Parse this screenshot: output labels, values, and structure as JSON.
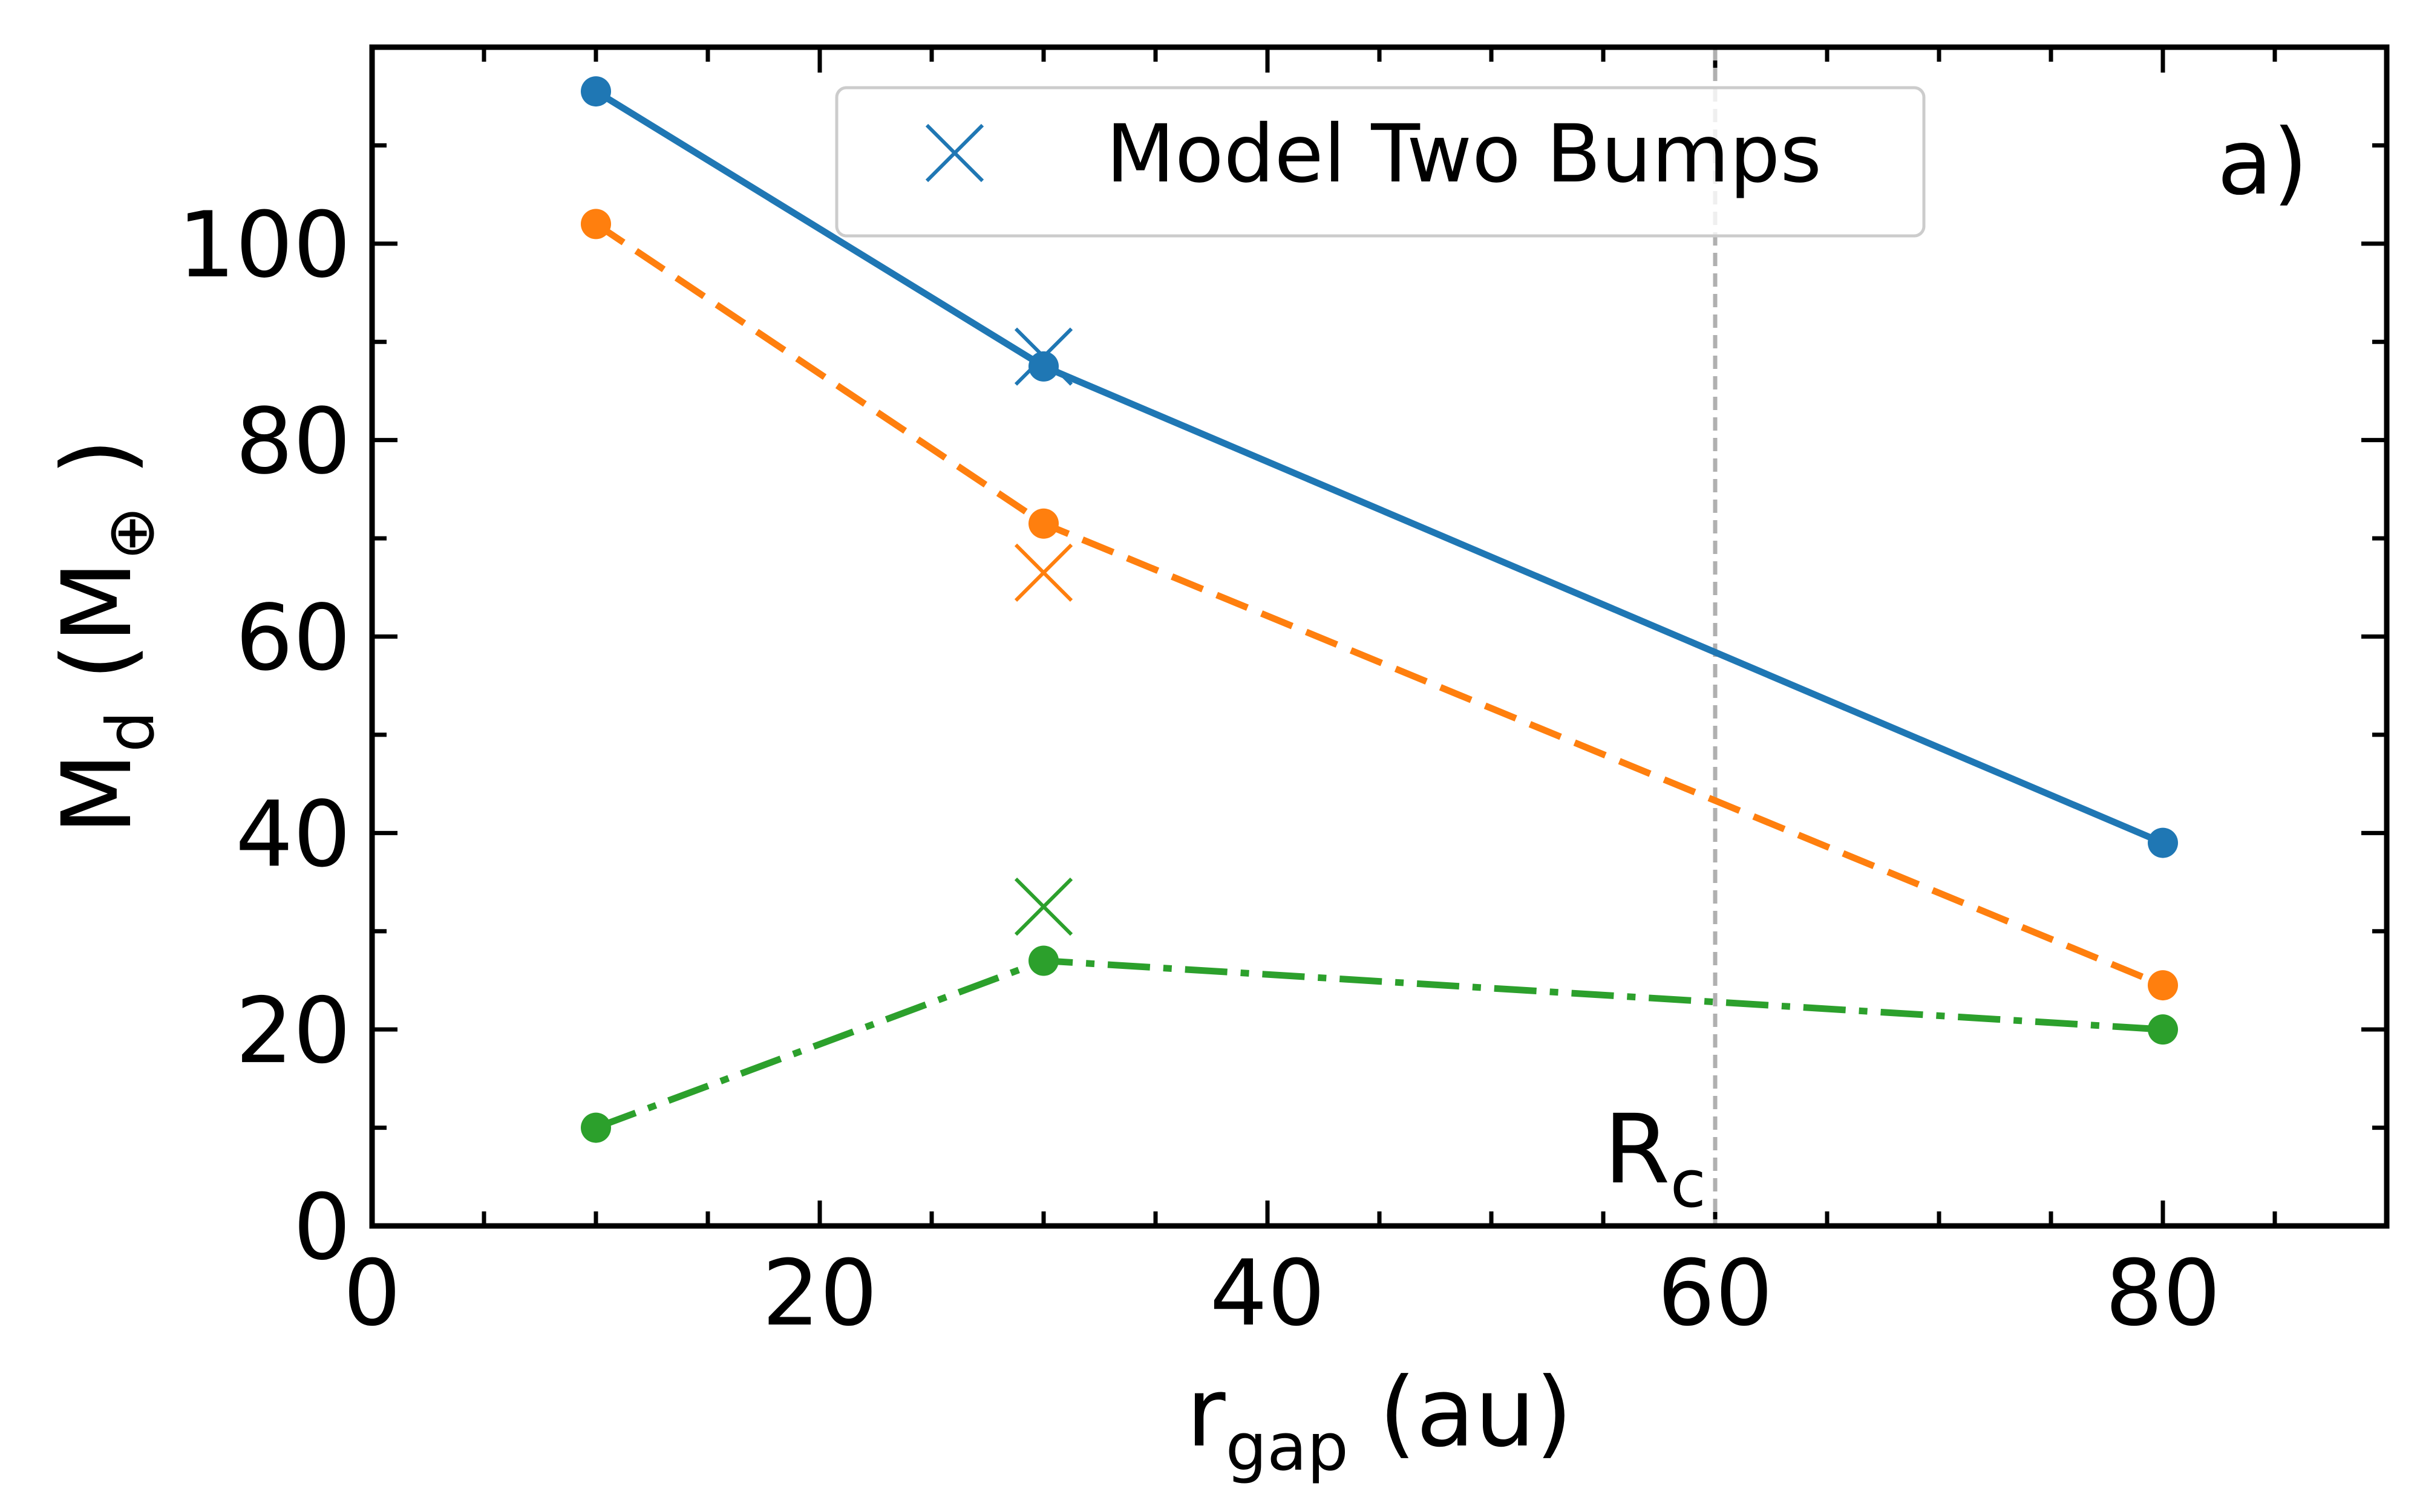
{
  "chart_data": {
    "type": "line",
    "panel_label": "a)",
    "xlabel": {
      "main": "r",
      "sub": "gap",
      "units": " (au)"
    },
    "ylabel": {
      "main": "M",
      "sub": "d",
      "units": " (M",
      "unit_sub": "⊕",
      "close": " )"
    },
    "xlim": [
      0,
      90
    ],
    "ylim": [
      0,
      120
    ],
    "xticks": [
      0,
      20,
      40,
      60,
      80
    ],
    "yticks": [
      0,
      20,
      40,
      60,
      80,
      100
    ],
    "x_minor_step": 5,
    "y_minor_step": 10,
    "grid": false,
    "legend": {
      "position": "top-center",
      "label": "Model Two Bumps",
      "marker": "x",
      "color": "#1f77b4"
    },
    "series": [
      {
        "color": "#1f77b4",
        "linestyle": "solid",
        "x": [
          10,
          30,
          80
        ],
        "y": [
          115.5,
          87.5,
          39
        ],
        "cross": {
          "x": 30,
          "y": 88.5
        }
      },
      {
        "color": "#ff7f0e",
        "linestyle": "dashed",
        "x": [
          10,
          30,
          80
        ],
        "y": [
          102,
          71.5,
          24.5
        ],
        "cross": {
          "x": 30,
          "y": 66.5
        }
      },
      {
        "color": "#2ca02c",
        "linestyle": "dashdot",
        "x": [
          10,
          30,
          80
        ],
        "y": [
          10,
          27,
          20
        ],
        "cross": {
          "x": 30,
          "y": 32.5
        }
      }
    ],
    "vline": {
      "x": 60,
      "color": "#b0b0b0",
      "label_main": "R",
      "label_sub": "c"
    }
  }
}
